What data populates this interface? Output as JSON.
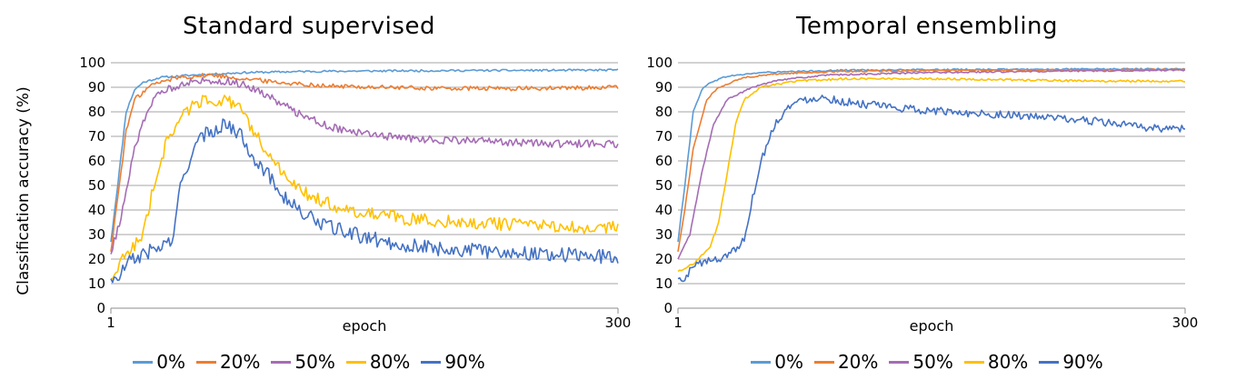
{
  "legend": [
    {
      "name": "0%",
      "color": "#5B9BD5"
    },
    {
      "name": "20%",
      "color": "#ED7D31"
    },
    {
      "name": "50%",
      "color": "#A56CB5"
    },
    {
      "name": "80%",
      "color": "#FFC000"
    },
    {
      "name": "90%",
      "color": "#4472C4"
    }
  ],
  "chart_data": [
    {
      "type": "line",
      "title": "Standard supervised",
      "xlabel": "epoch",
      "ylabel": "Classification accuracy (%)",
      "xlim": [
        1,
        300
      ],
      "ylim": [
        0,
        100
      ],
      "x_ticks": [
        "1",
        "300"
      ],
      "y_ticks": [
        "0",
        "10",
        "20",
        "30",
        "40",
        "50",
        "60",
        "70",
        "80",
        "90",
        "100"
      ],
      "grid": "horizontal",
      "legend_position": "bottom",
      "series": [
        {
          "name": "0%",
          "color": "#5B9BD5",
          "noise": 0.4,
          "points": [
            [
              1,
              27
            ],
            [
              5,
              50
            ],
            [
              10,
              80
            ],
            [
              15,
              89
            ],
            [
              20,
              92
            ],
            [
              30,
              94
            ],
            [
              50,
              95
            ],
            [
              80,
              96
            ],
            [
              120,
              96.5
            ],
            [
              200,
              96.8
            ],
            [
              300,
              97
            ]
          ]
        },
        {
          "name": "20%",
          "color": "#ED7D31",
          "noise": 0.9,
          "points": [
            [
              1,
              23
            ],
            [
              5,
              45
            ],
            [
              10,
              72
            ],
            [
              15,
              85
            ],
            [
              25,
              91
            ],
            [
              40,
              94
            ],
            [
              60,
              95
            ],
            [
              80,
              93.5
            ],
            [
              100,
              92
            ],
            [
              130,
              90.5
            ],
            [
              160,
              90
            ],
            [
              200,
              89.5
            ],
            [
              250,
              89.5
            ],
            [
              300,
              90
            ]
          ]
        },
        {
          "name": "50%",
          "color": "#A56CB5",
          "noise": 1.6,
          "points": [
            [
              1,
              22
            ],
            [
              8,
              40
            ],
            [
              15,
              65
            ],
            [
              22,
              80
            ],
            [
              30,
              88
            ],
            [
              45,
              92
            ],
            [
              60,
              93
            ],
            [
              75,
              92
            ],
            [
              90,
              88
            ],
            [
              110,
              80
            ],
            [
              130,
              74
            ],
            [
              150,
              71
            ],
            [
              180,
              69
            ],
            [
              220,
              68
            ],
            [
              260,
              67
            ],
            [
              300,
              67
            ]
          ]
        },
        {
          "name": "80%",
          "color": "#FFC000",
          "noise": 2.6,
          "points": [
            [
              1,
              12
            ],
            [
              10,
              22
            ],
            [
              20,
              30
            ],
            [
              28,
              55
            ],
            [
              35,
              70
            ],
            [
              45,
              80
            ],
            [
              55,
              85
            ],
            [
              65,
              85
            ],
            [
              75,
              83
            ],
            [
              85,
              72
            ],
            [
              95,
              62
            ],
            [
              105,
              52
            ],
            [
              120,
              45
            ],
            [
              140,
              40
            ],
            [
              160,
              38
            ],
            [
              180,
              36
            ],
            [
              210,
              35
            ],
            [
              240,
              34
            ],
            [
              270,
              33
            ],
            [
              300,
              33
            ]
          ]
        },
        {
          "name": "90%",
          "color": "#4472C4",
          "noise": 3.0,
          "points": [
            [
              1,
              12
            ],
            [
              5,
              11
            ],
            [
              10,
              18
            ],
            [
              20,
              22
            ],
            [
              30,
              25
            ],
            [
              38,
              28
            ],
            [
              42,
              50
            ],
            [
              48,
              62
            ],
            [
              55,
              70
            ],
            [
              65,
              74
            ],
            [
              70,
              75
            ],
            [
              78,
              70
            ],
            [
              85,
              62
            ],
            [
              95,
              53
            ],
            [
              105,
              44
            ],
            [
              115,
              38
            ],
            [
              130,
              33
            ],
            [
              150,
              29
            ],
            [
              170,
              26
            ],
            [
              200,
              24
            ],
            [
              230,
              23
            ],
            [
              260,
              22
            ],
            [
              300,
              21
            ]
          ]
        }
      ]
    },
    {
      "type": "line",
      "title": "Temporal ensembling",
      "xlabel": "epoch",
      "ylabel": "",
      "xlim": [
        1,
        300
      ],
      "ylim": [
        0,
        100
      ],
      "x_ticks": [
        "1",
        "300"
      ],
      "y_ticks": [
        "0",
        "10",
        "20",
        "30",
        "40",
        "50",
        "60",
        "70",
        "80",
        "90",
        "100"
      ],
      "grid": "horizontal",
      "legend_position": "bottom",
      "series": [
        {
          "name": "0%",
          "color": "#5B9BD5",
          "noise": 0.3,
          "points": [
            [
              1,
              27
            ],
            [
              5,
              50
            ],
            [
              10,
              80
            ],
            [
              15,
              89
            ],
            [
              20,
              92
            ],
            [
              30,
              94.5
            ],
            [
              50,
              96
            ],
            [
              100,
              97
            ],
            [
              200,
              97.3
            ],
            [
              300,
              97.5
            ]
          ]
        },
        {
          "name": "20%",
          "color": "#ED7D31",
          "noise": 0.3,
          "points": [
            [
              1,
              23
            ],
            [
              5,
              40
            ],
            [
              10,
              65
            ],
            [
              18,
              85
            ],
            [
              25,
              90
            ],
            [
              40,
              94
            ],
            [
              60,
              95.5
            ],
            [
              100,
              96.5
            ],
            [
              200,
              97
            ],
            [
              300,
              97.2
            ]
          ]
        },
        {
          "name": "50%",
          "color": "#A56CB5",
          "noise": 0.3,
          "points": [
            [
              1,
              20
            ],
            [
              8,
              30
            ],
            [
              15,
              55
            ],
            [
              22,
              75
            ],
            [
              30,
              85
            ],
            [
              45,
              90
            ],
            [
              60,
              93
            ],
            [
              90,
              95
            ],
            [
              150,
              96
            ],
            [
              220,
              96.5
            ],
            [
              300,
              97
            ]
          ]
        },
        {
          "name": "80%",
          "color": "#FFC000",
          "noise": 0.4,
          "points": [
            [
              1,
              15
            ],
            [
              10,
              18
            ],
            [
              20,
              25
            ],
            [
              25,
              35
            ],
            [
              30,
              55
            ],
            [
              35,
              75
            ],
            [
              40,
              85
            ],
            [
              50,
              90
            ],
            [
              70,
              92.5
            ],
            [
              100,
              93.5
            ],
            [
              150,
              93.5
            ],
            [
              200,
              93
            ],
            [
              250,
              92.5
            ],
            [
              300,
              92.5
            ]
          ]
        },
        {
          "name": "90%",
          "color": "#4472C4",
          "noise": 1.6,
          "points": [
            [
              1,
              12
            ],
            [
              5,
              11
            ],
            [
              10,
              18
            ],
            [
              25,
              20
            ],
            [
              35,
              24
            ],
            [
              40,
              28
            ],
            [
              45,
              45
            ],
            [
              50,
              60
            ],
            [
              58,
              75
            ],
            [
              66,
              82
            ],
            [
              75,
              85
            ],
            [
              85,
              86
            ],
            [
              100,
              84
            ],
            [
              130,
              81.5
            ],
            [
              160,
              80
            ],
            [
              190,
              79
            ],
            [
              220,
              77.5
            ],
            [
              250,
              76
            ],
            [
              270,
              74
            ],
            [
              285,
              73.3
            ],
            [
              300,
              73.3
            ]
          ]
        }
      ]
    }
  ]
}
